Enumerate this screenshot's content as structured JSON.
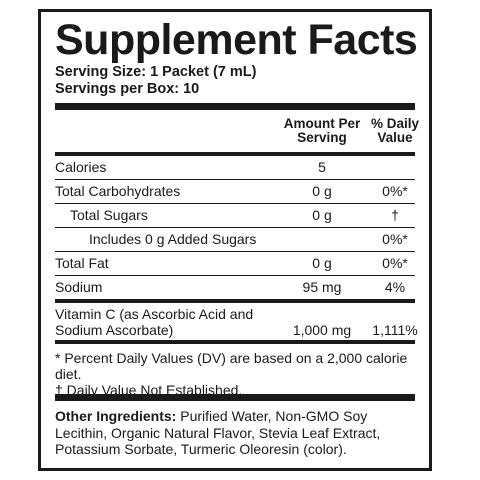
{
  "title": "Supplement Facts",
  "serving_size": "Serving Size: 1 Packet (7 mL)",
  "servings_per": "Servings per Box: 10",
  "header": {
    "amount": "Amount Per Serving",
    "daily_value": "% Daily Value"
  },
  "rows": [
    {
      "name": "Calories",
      "amount": "5",
      "dv": ""
    },
    {
      "name": "Total Carbohydrates",
      "amount": "0 g",
      "dv": "0%*"
    },
    {
      "name": "Total Sugars",
      "amount": "0 g",
      "dv": "†"
    },
    {
      "name": "Includes 0 g Added Sugars",
      "amount": "",
      "dv": "0%*"
    },
    {
      "name": "Total Fat",
      "amount": "0 g",
      "dv": "0%*"
    },
    {
      "name": "Sodium",
      "amount": "95 mg",
      "dv": "4%"
    },
    {
      "name": "Vitamin C (as Ascorbic Acid and Sodium Ascorbate)",
      "amount": "1,000 mg",
      "dv": "1,111%"
    }
  ],
  "footnotes": {
    "percent_dv": "* Percent Daily Values (DV) are based on a 2,000 calorie diet.",
    "not_established": "† Daily Value Not Established."
  },
  "other_ingredients": {
    "label": "Other Ingredients:",
    "text": "Purified Water, Non-GMO Soy Lecithin, Organic Natural Flavor, Stevia Leaf Extract, Potassium Sorbate, Turmeric Oleoresin (color)."
  }
}
